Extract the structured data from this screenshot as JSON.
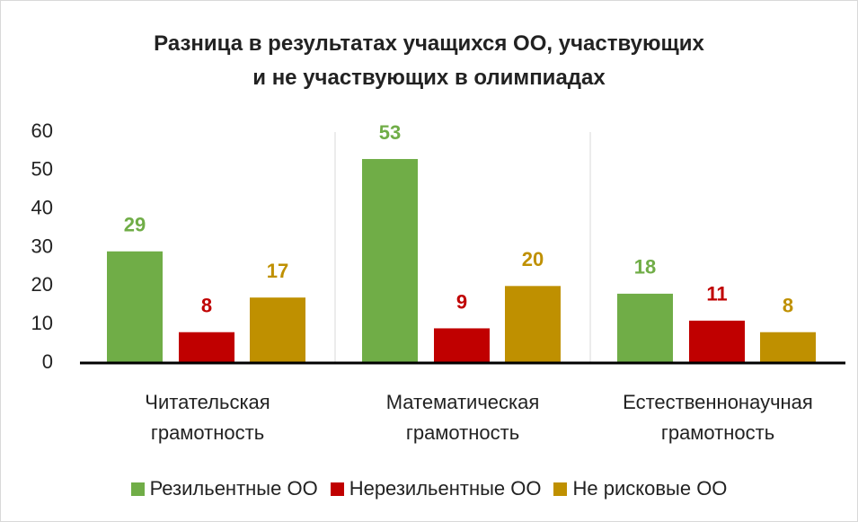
{
  "chart_data": {
    "type": "bar",
    "title": [
      "Разница в результатах учащихся ОО, участвующих",
      "и не участвующих в олимпиадах"
    ],
    "categories": [
      "Читательская грамотность",
      "Математическая грамотность",
      "Естественнонаучная грамотность"
    ],
    "series": [
      {
        "name": "Резильентные ОО",
        "color": "#70ad47",
        "values": [
          29,
          53,
          18
        ]
      },
      {
        "name": "Нерезильентные ОО",
        "color": "#c00000",
        "values": [
          8,
          9,
          11
        ]
      },
      {
        "name": "Не рисковые ОО",
        "color": "#bf9000",
        "values": [
          17,
          20,
          8
        ]
      }
    ],
    "ylim": [
      0,
      60
    ],
    "yticks": [
      0,
      10,
      20,
      30,
      40,
      50,
      60
    ],
    "legend": "bottom"
  }
}
